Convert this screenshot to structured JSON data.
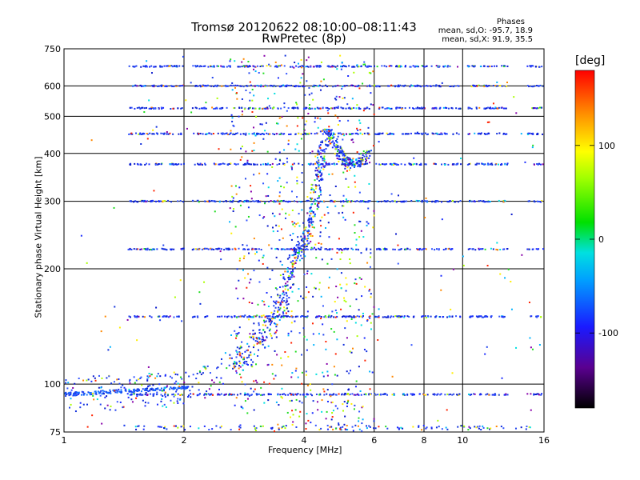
{
  "chart_data": {
    "type": "scatter",
    "title": "Tromsø 20120622 08:10:00–08:11:43",
    "subtitle": "RwPretec (8p)",
    "xlabel": "Frequency [MHz]",
    "ylabel": "Stationary phase Virtual Height [km]",
    "x_scale": "log",
    "y_scale": "log",
    "xlim": [
      1,
      16
    ],
    "ylim": [
      75,
      750
    ],
    "x_ticks": [
      "1",
      "2",
      "4",
      "6",
      "8",
      "10",
      "16"
    ],
    "y_ticks": [
      "75",
      "100",
      "200",
      "300",
      "400",
      "500",
      "600",
      "750"
    ],
    "grid": true,
    "colorbar": {
      "label": "[deg]",
      "range": [
        -180,
        180
      ],
      "ticks": [
        "100",
        "0",
        "-100"
      ]
    },
    "stats": {
      "title": "Phases",
      "o_mode": "mean, sd,O: -95.7, 18.9",
      "x_mode": "mean, sd,X:  91.9, 35.5"
    },
    "echo_bands_km": [
      94,
      150,
      225,
      300,
      375,
      450,
      525,
      600,
      675,
      750
    ],
    "trace_points": [
      [
        1.0,
        94
      ],
      [
        1.2,
        95
      ],
      [
        1.5,
        96
      ],
      [
        1.8,
        97
      ],
      [
        2.05,
        98
      ],
      [
        2.7,
        115
      ],
      [
        2.9,
        120
      ],
      [
        3.1,
        135
      ],
      [
        3.3,
        145
      ],
      [
        3.5,
        160
      ],
      [
        3.65,
        185
      ],
      [
        3.8,
        215
      ],
      [
        3.95,
        230
      ],
      [
        4.1,
        255
      ],
      [
        4.25,
        300
      ],
      [
        4.35,
        350
      ],
      [
        4.45,
        400
      ],
      [
        4.6,
        460
      ],
      [
        4.8,
        420
      ],
      [
        5.0,
        390
      ],
      [
        5.2,
        375
      ],
      [
        5.5,
        380
      ],
      [
        5.8,
        400
      ]
    ]
  }
}
